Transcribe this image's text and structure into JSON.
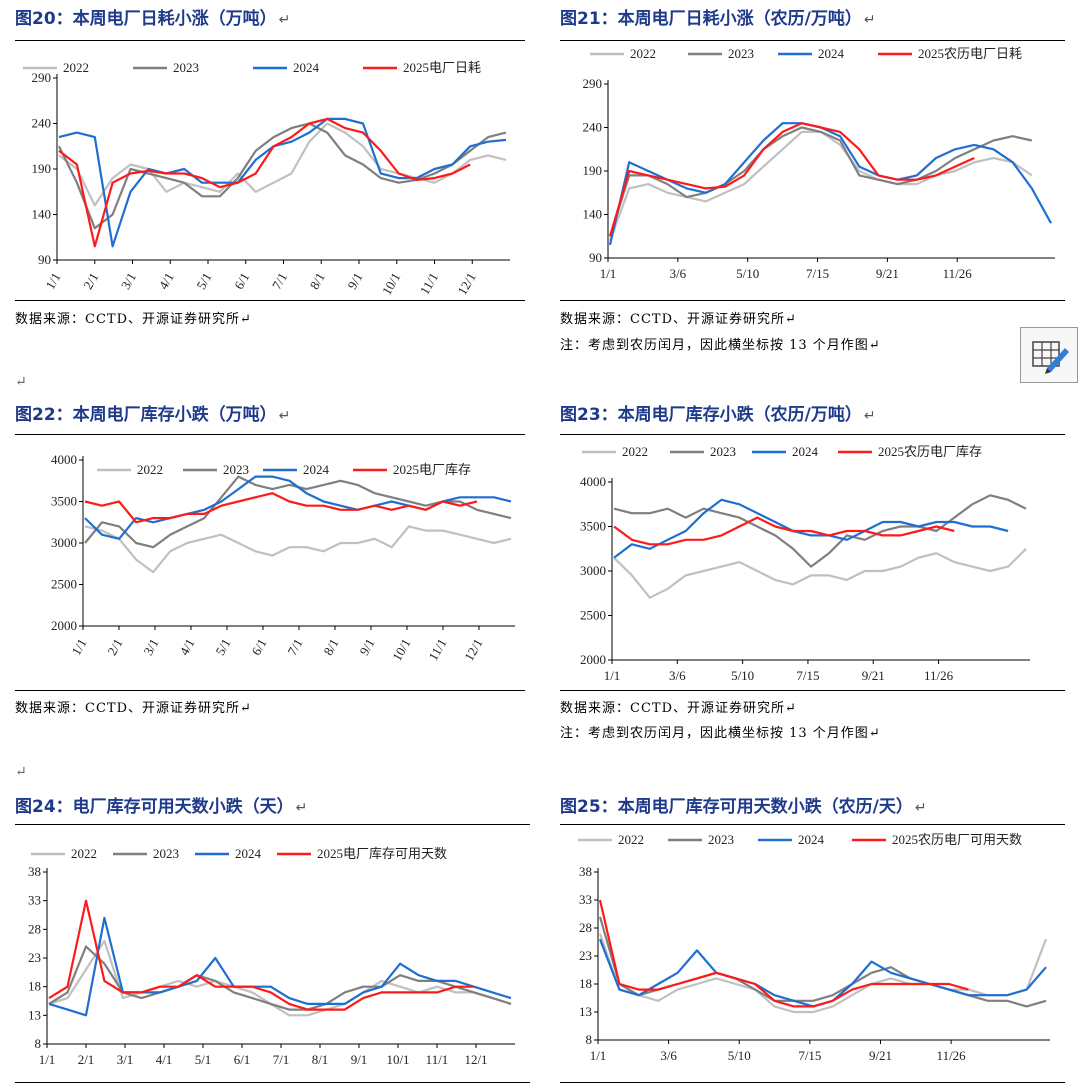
{
  "return_mark": "↵",
  "colors": {
    "title": "#1f3a8a",
    "s2022": "#c0c0c0",
    "s2023": "#7f7f7f",
    "s2024": "#1f6fd1",
    "s2025": "#ff1a1a"
  },
  "panels": [
    {
      "id": "fig20",
      "title": "图20：本周电厂日耗小涨（万吨）",
      "source": "数据来源：CCTD、开源证券研究所",
      "note": "",
      "chart_data": {
        "type": "line",
        "xticks": [
          "1/1",
          "2/1",
          "3/1",
          "4/1",
          "5/1",
          "6/1",
          "7/1",
          "8/1",
          "9/1",
          "10/1",
          "11/1",
          "12/1"
        ],
        "x_rotated": true,
        "ylim": [
          90,
          290
        ],
        "yticks": [
          90,
          140,
          190,
          240,
          290
        ],
        "legend": [
          "2022",
          "2023",
          "2024",
          "2025电厂日耗"
        ],
        "series": [
          {
            "name": "2022",
            "color": "#c0c0c0",
            "values": [
              205,
              190,
              150,
              180,
              195,
              190,
              165,
              175,
              170,
              165,
              185,
              165,
              175,
              185,
              220,
              240,
              230,
              215,
              190,
              185,
              180,
              175,
              185,
              200,
              205,
              200
            ]
          },
          {
            "name": "2023",
            "color": "#7f7f7f",
            "values": [
              215,
              175,
              125,
              140,
              190,
              185,
              180,
              175,
              160,
              160,
              180,
              210,
              225,
              235,
              240,
              230,
              205,
              195,
              180,
              175,
              178,
              185,
              195,
              210,
              225,
              230
            ]
          },
          {
            "name": "2024",
            "color": "#1f6fd1",
            "values": [
              225,
              230,
              225,
              105,
              165,
              190,
              185,
              190,
              175,
              175,
              175,
              200,
              215,
              220,
              230,
              245,
              245,
              240,
              185,
              180,
              180,
              190,
              195,
              215,
              220,
              222
            ]
          },
          {
            "name": "2025电厂日耗",
            "color": "#ff1a1a",
            "values": [
              210,
              195,
              105,
              175,
              185,
              188,
              185,
              185,
              180,
              170,
              175,
              185,
              215,
              225,
              240,
              245,
              235,
              230,
              210,
              185,
              178,
              180,
              185,
              195,
              null,
              null
            ]
          }
        ]
      }
    },
    {
      "id": "fig21",
      "title": "图21：本周电厂日耗小涨（农历/万吨）",
      "source": "数据来源：CCTD、开源证券研究所",
      "note": "注：考虑到农历闰月，因此横坐标按 13 个月作图",
      "chart_data": {
        "type": "line",
        "xticks": [
          "1/1",
          "3/6",
          "5/10",
          "7/15",
          "9/21",
          "11/26"
        ],
        "x_rotated": false,
        "ylim": [
          90,
          290
        ],
        "yticks": [
          90,
          140,
          190,
          240,
          290
        ],
        "legend": [
          "2022",
          "2023",
          "2024",
          "2025农历电厂日耗"
        ],
        "series": [
          {
            "name": "2022",
            "color": "#c0c0c0",
            "values": [
              110,
              170,
              175,
              165,
              160,
              155,
              165,
              175,
              195,
              215,
              235,
              235,
              220,
              190,
              180,
              175,
              175,
              185,
              190,
              200,
              205,
              200,
              185,
              null
            ]
          },
          {
            "name": "2023",
            "color": "#7f7f7f",
            "values": [
              115,
              185,
              185,
              175,
              160,
              165,
              175,
              190,
              215,
              230,
              240,
              235,
              225,
              185,
              180,
              175,
              180,
              190,
              205,
              215,
              225,
              230,
              225,
              null
            ]
          },
          {
            "name": "2024",
            "color": "#1f6fd1",
            "values": [
              105,
              200,
              190,
              180,
              170,
              165,
              175,
              200,
              225,
              245,
              245,
              240,
              230,
              195,
              185,
              180,
              185,
              205,
              215,
              220,
              215,
              200,
              170,
              130
            ]
          },
          {
            "name": "2025农历电厂日耗",
            "color": "#ff1a1a",
            "values": [
              115,
              190,
              185,
              180,
              175,
              170,
              172,
              185,
              215,
              235,
              245,
              240,
              235,
              215,
              185,
              180,
              180,
              185,
              195,
              205,
              null,
              null,
              null,
              null
            ]
          }
        ]
      }
    },
    {
      "id": "fig22",
      "title": "图22：本周电厂库存小跌（万吨）",
      "source": "数据来源：CCTD、开源证券研究所",
      "note": "",
      "chart_data": {
        "type": "line",
        "xticks": [
          "1/1",
          "2/1",
          "3/1",
          "4/1",
          "5/1",
          "6/1",
          "7/1",
          "8/1",
          "9/1",
          "10/1",
          "11/1",
          "12/1"
        ],
        "x_rotated": true,
        "ylim": [
          2000,
          4000
        ],
        "yticks": [
          2000,
          2500,
          3000,
          3500,
          4000
        ],
        "legend": [
          "2022",
          "2023",
          "2024",
          "2025电厂库存"
        ],
        "series": [
          {
            "name": "2022",
            "color": "#c0c0c0",
            "values": [
              3200,
              3150,
              3050,
              2800,
              2650,
              2900,
              3000,
              3050,
              3100,
              3000,
              2900,
              2850,
              2950,
              2950,
              2900,
              3000,
              3000,
              3050,
              2950,
              3200,
              3150,
              3150,
              3100,
              3050,
              3000,
              3050
            ]
          },
          {
            "name": "2023",
            "color": "#7f7f7f",
            "values": [
              3000,
              3250,
              3200,
              3000,
              2950,
              3100,
              3200,
              3300,
              3550,
              3800,
              3700,
              3650,
              3700,
              3650,
              3700,
              3750,
              3700,
              3600,
              3550,
              3500,
              3450,
              3500,
              3500,
              3400,
              3350,
              3300
            ]
          },
          {
            "name": "2024",
            "color": "#1f6fd1",
            "values": [
              3300,
              3100,
              3050,
              3300,
              3250,
              3300,
              3350,
              3400,
              3500,
              3650,
              3800,
              3800,
              3750,
              3600,
              3500,
              3450,
              3400,
              3450,
              3500,
              3450,
              3400,
              3500,
              3550,
              3550,
              3550,
              3500
            ]
          },
          {
            "name": "2025电厂库存",
            "color": "#ff1a1a",
            "values": [
              3500,
              3450,
              3500,
              3250,
              3300,
              3300,
              3350,
              3350,
              3450,
              3500,
              3550,
              3600,
              3500,
              3450,
              3450,
              3400,
              3400,
              3450,
              3400,
              3450,
              3400,
              3500,
              3450,
              3500,
              null,
              null
            ]
          }
        ]
      }
    },
    {
      "id": "fig23",
      "title": "图23：本周电厂库存小跌（农历/万吨）",
      "source": "数据来源：CCTD、开源证券研究所",
      "note": "注：考虑到农历闰月，因此横坐标按 13 个月作图",
      "chart_data": {
        "type": "line",
        "xticks": [
          "1/1",
          "3/6",
          "5/10",
          "7/15",
          "9/21",
          "11/26"
        ],
        "x_rotated": false,
        "ylim": [
          2000,
          4000
        ],
        "yticks": [
          2000,
          2500,
          3000,
          3500,
          4000
        ],
        "legend": [
          "2022",
          "2023",
          "2024",
          "2025农历电厂库存"
        ],
        "series": [
          {
            "name": "2022",
            "color": "#c0c0c0",
            "values": [
              3150,
              2950,
              2700,
              2800,
              2950,
              3000,
              3050,
              3100,
              3000,
              2900,
              2850,
              2950,
              2950,
              2900,
              3000,
              3000,
              3050,
              3150,
              3200,
              3100,
              3050,
              3000,
              3050,
              3250
            ]
          },
          {
            "name": "2023",
            "color": "#7f7f7f",
            "values": [
              3700,
              3650,
              3650,
              3700,
              3600,
              3700,
              3650,
              3600,
              3500,
              3400,
              3250,
              3050,
              3200,
              3400,
              3350,
              3450,
              3500,
              3500,
              3450,
              3600,
              3750,
              3850,
              3800,
              3700
            ]
          },
          {
            "name": "2024",
            "color": "#1f6fd1",
            "values": [
              3150,
              3300,
              3250,
              3350,
              3450,
              3650,
              3800,
              3750,
              3650,
              3550,
              3450,
              3400,
              3400,
              3350,
              3450,
              3550,
              3550,
              3500,
              3550,
              3550,
              3500,
              3500,
              3450,
              null
            ]
          },
          {
            "name": "2025农历电厂库存",
            "color": "#ff1a1a",
            "values": [
              3500,
              3350,
              3300,
              3300,
              3350,
              3350,
              3400,
              3500,
              3600,
              3500,
              3450,
              3450,
              3400,
              3450,
              3450,
              3400,
              3400,
              3450,
              3500,
              3450,
              null,
              null,
              null,
              null
            ]
          }
        ]
      }
    },
    {
      "id": "fig24",
      "title": "图24：电厂库存可用天数小跌（天）",
      "source": "",
      "note": "",
      "chart_data": {
        "type": "line",
        "xticks": [
          "1/1",
          "2/1",
          "3/1",
          "4/1",
          "5/1",
          "6/1",
          "7/1",
          "8/1",
          "9/1",
          "10/1",
          "11/1",
          "12/1"
        ],
        "x_rotated": false,
        "ylim": [
          8,
          38
        ],
        "yticks": [
          8,
          13,
          18,
          23,
          28,
          33,
          38
        ],
        "legend": [
          "2022",
          "2023",
          "2024",
          "2025电厂库存可用天数"
        ],
        "series": [
          {
            "name": "2022",
            "color": "#c0c0c0",
            "values": [
              15,
              16,
              21,
              26,
              16,
              17,
              18,
              19,
              18,
              19,
              18,
              17,
              15,
              13,
              13,
              14,
              15,
              17,
              19,
              18,
              17,
              18,
              17,
              17,
              16,
              15
            ]
          },
          {
            "name": "2023",
            "color": "#7f7f7f",
            "values": [
              15,
              17,
              25,
              22,
              17,
              16,
              17,
              18,
              20,
              19,
              17,
              16,
              15,
              14,
              14,
              15,
              17,
              18,
              18,
              20,
              19,
              19,
              18,
              17,
              16,
              15
            ]
          },
          {
            "name": "2024",
            "color": "#1f6fd1",
            "values": [
              15,
              14,
              13,
              30,
              17,
              17,
              17,
              18,
              19,
              23,
              18,
              18,
              18,
              16,
              15,
              15,
              15,
              17,
              18,
              22,
              20,
              19,
              19,
              18,
              17,
              16
            ]
          },
          {
            "name": "2025电厂库存可用天数",
            "color": "#ff1a1a",
            "values": [
              16,
              18,
              33,
              19,
              17,
              17,
              18,
              18,
              20,
              18,
              18,
              18,
              17,
              15,
              14,
              14,
              14,
              16,
              17,
              17,
              17,
              17,
              18,
              18,
              null,
              null
            ]
          }
        ]
      }
    },
    {
      "id": "fig25",
      "title": "图25：本周电厂库存可用天数小跌（农历/天）",
      "source": "",
      "note": "",
      "chart_data": {
        "type": "line",
        "xticks": [
          "1/1",
          "3/6",
          "5/10",
          "7/15",
          "9/21",
          "11/26"
        ],
        "x_rotated": false,
        "ylim": [
          8,
          38
        ],
        "yticks": [
          8,
          13,
          18,
          23,
          28,
          33,
          38
        ],
        "legend": [
          "2022",
          "2023",
          "2024",
          "2025农历电厂可用天数"
        ],
        "series": [
          {
            "name": "2022",
            "color": "#c0c0c0",
            "values": [
              27,
              17,
              16,
              15,
              17,
              18,
              19,
              18,
              17,
              14,
              13,
              13,
              14,
              16,
              18,
              19,
              18,
              18,
              17,
              17,
              16,
              16,
              17,
              26
            ]
          },
          {
            "name": "2023",
            "color": "#7f7f7f",
            "values": [
              30,
              18,
              16,
              17,
              18,
              19,
              20,
              19,
              17,
              15,
              15,
              15,
              16,
              18,
              20,
              21,
              19,
              18,
              17,
              16,
              15,
              15,
              14,
              15
            ]
          },
          {
            "name": "2024",
            "color": "#1f6fd1",
            "values": [
              26,
              17,
              16,
              18,
              20,
              24,
              20,
              19,
              18,
              16,
              15,
              14,
              15,
              18,
              22,
              20,
              19,
              18,
              17,
              16,
              16,
              16,
              17,
              21
            ]
          },
          {
            "name": "2025农历电厂可用天数",
            "color": "#ff1a1a",
            "values": [
              33,
              18,
              17,
              17,
              18,
              19,
              20,
              19,
              18,
              15,
              14,
              14,
              15,
              17,
              18,
              18,
              18,
              18,
              18,
              17,
              null,
              null,
              null,
              null
            ]
          }
        ]
      }
    }
  ]
}
